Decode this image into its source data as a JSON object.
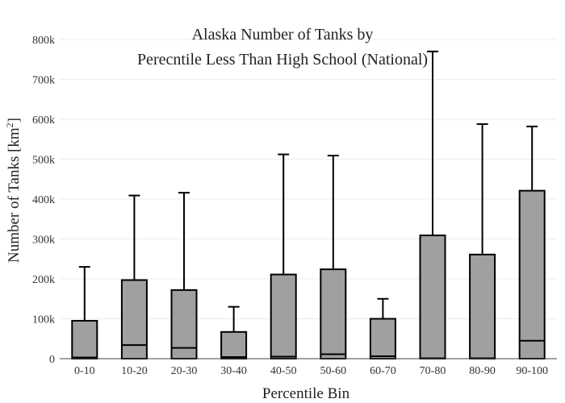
{
  "chart_data": {
    "type": "box",
    "title_line1": "Alaska Number of Tanks by",
    "title_line2": "Perecntile Less Than High School (National)",
    "xlabel": "Percentile Bin",
    "ylabel_main": "Number of Tanks  [km",
    "ylabel_sup": "2",
    "ylabel_end": "]",
    "ylim": [
      0,
      800000
    ],
    "yticks": [
      0,
      100000,
      200000,
      300000,
      400000,
      500000,
      600000,
      700000,
      800000
    ],
    "ytick_labels": [
      "0",
      "100k",
      "200k",
      "300k",
      "400k",
      "500k",
      "600k",
      "700k",
      "800k"
    ],
    "grid": true,
    "categories": [
      "0-10",
      "10-20",
      "20-30",
      "30-40",
      "40-50",
      "50-60",
      "60-70",
      "70-80",
      "80-90",
      "90-100"
    ],
    "boxes": [
      {
        "min": 0,
        "q1": 0,
        "median": 3000,
        "q3": 95000,
        "max": 230000
      },
      {
        "min": 0,
        "q1": 0,
        "median": 34000,
        "q3": 197000,
        "max": 409000
      },
      {
        "min": 0,
        "q1": 0,
        "median": 27000,
        "q3": 172000,
        "max": 416000
      },
      {
        "min": 0,
        "q1": 0,
        "median": 4000,
        "q3": 67000,
        "max": 130000
      },
      {
        "min": 0,
        "q1": 0,
        "median": 5000,
        "q3": 211000,
        "max": 512000
      },
      {
        "min": 0,
        "q1": 0,
        "median": 11000,
        "q3": 224000,
        "max": 509000
      },
      {
        "min": 0,
        "q1": 0,
        "median": 6000,
        "q3": 100000,
        "max": 150000
      },
      {
        "min": 0,
        "q1": 0,
        "median": 1000,
        "q3": 309000,
        "max": 770000
      },
      {
        "min": 0,
        "q1": 0,
        "median": 1000,
        "q3": 261000,
        "max": 588000
      },
      {
        "min": 0,
        "q1": 0,
        "median": 45000,
        "q3": 421000,
        "max": 582000
      }
    ],
    "colors": {
      "box_fill": "#a0a0a0",
      "box_stroke": "#000000",
      "grid": "#ececec"
    }
  }
}
